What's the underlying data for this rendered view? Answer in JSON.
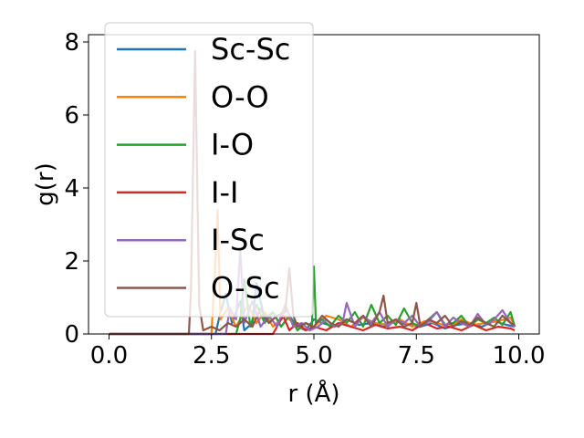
{
  "chart_data": {
    "type": "line",
    "xlabel": "r (Å)",
    "ylabel": "g(r)",
    "xlim": [
      -0.5,
      10.5
    ],
    "ylim": [
      0,
      8.2
    ],
    "xticks": [
      "0.0",
      "2.5",
      "5.0",
      "7.5",
      "10.0"
    ],
    "xtick_values": [
      0,
      2.5,
      5,
      7.5,
      10
    ],
    "yticks": [
      "0",
      "2",
      "4",
      "6",
      "8"
    ],
    "ytick_values": [
      0,
      2,
      4,
      6,
      8
    ],
    "grid": false,
    "legend_position": "top-left",
    "series": [
      {
        "name": "Sc-Sc",
        "color": "#1f77b4",
        "x": [
          0.0,
          2.6,
          2.7,
          2.85,
          3.0,
          3.2,
          3.3,
          3.5,
          3.6,
          3.8,
          4.0,
          4.2,
          4.4,
          4.6,
          4.8,
          5.0,
          5.2,
          5.5,
          5.8,
          6.1,
          6.4,
          6.7,
          7.0,
          7.3,
          7.6,
          7.9,
          8.2,
          8.5,
          8.8,
          9.1,
          9.4,
          9.7,
          9.9
        ],
        "y": [
          0,
          0,
          0.5,
          1.1,
          0.3,
          0.9,
          0.1,
          0.3,
          1.4,
          0.4,
          0.6,
          0.2,
          0.5,
          0.2,
          0.1,
          0.4,
          0.3,
          0.2,
          0.4,
          0.25,
          0.3,
          0.2,
          0.35,
          0.25,
          0.2,
          0.3,
          0.15,
          0.25,
          0.3,
          0.2,
          0.35,
          0.25,
          0.2
        ]
      },
      {
        "name": "O-O",
        "color": "#ff7f0e",
        "x": [
          0.0,
          2.5,
          2.58,
          2.65,
          2.72,
          2.9,
          3.1,
          3.4,
          3.6,
          3.8,
          4.0,
          4.3,
          4.6,
          4.9,
          5.1,
          5.3,
          5.6,
          5.9,
          6.2,
          6.5,
          6.8,
          7.1,
          7.4,
          7.7,
          8.0,
          8.3,
          8.6,
          8.9,
          9.2,
          9.5,
          9.8,
          9.9
        ],
        "y": [
          0,
          0,
          1.6,
          3.4,
          0.4,
          0.7,
          0.2,
          0.8,
          0.3,
          0.6,
          0.2,
          0.5,
          0.2,
          0.1,
          0.3,
          0.5,
          0.4,
          0.2,
          0.45,
          0.3,
          0.25,
          0.4,
          0.2,
          0.35,
          0.3,
          0.2,
          0.4,
          0.25,
          0.3,
          0.35,
          0.45,
          0.2
        ]
      },
      {
        "name": "I-O",
        "color": "#2ca02c",
        "x": [
          0.0,
          3.1,
          3.2,
          3.3,
          3.45,
          3.6,
          3.8,
          4.0,
          4.2,
          4.4,
          4.6,
          4.8,
          4.95,
          5.0,
          5.05,
          5.2,
          5.4,
          5.6,
          5.8,
          6.0,
          6.2,
          6.4,
          6.6,
          6.8,
          7.0,
          7.2,
          7.4,
          7.6,
          7.8,
          8.0,
          8.2,
          8.4,
          8.6,
          8.8,
          9.0,
          9.2,
          9.4,
          9.6,
          9.8,
          9.9
        ],
        "y": [
          0,
          0,
          0.4,
          1.5,
          0.2,
          0.8,
          0.3,
          0.6,
          0.2,
          0.5,
          0.1,
          0.3,
          0.2,
          1.85,
          0.3,
          0.4,
          0.2,
          0.5,
          0.3,
          0.6,
          0.2,
          0.8,
          0.3,
          0.5,
          0.25,
          0.7,
          0.3,
          0.2,
          0.4,
          0.6,
          0.25,
          0.3,
          0.5,
          0.2,
          0.4,
          0.3,
          0.45,
          0.25,
          0.6,
          0.2
        ]
      },
      {
        "name": "I-I",
        "color": "#d62728",
        "x": [
          0.0,
          4.0,
          4.1,
          4.25,
          4.4,
          4.6,
          4.8,
          5.0,
          5.3,
          5.6,
          5.9,
          6.2,
          6.5,
          6.8,
          7.1,
          7.4,
          7.7,
          8.0,
          8.3,
          8.6,
          8.9,
          9.2,
          9.5,
          9.8,
          9.9
        ],
        "y": [
          0,
          0,
          0.2,
          0.5,
          0.1,
          0.3,
          0.1,
          0.2,
          0.1,
          0.3,
          0.2,
          0.1,
          0.25,
          0.15,
          0.2,
          0.1,
          0.3,
          0.15,
          0.2,
          0.1,
          0.25,
          0.1,
          0.2,
          0.15,
          0.1
        ]
      },
      {
        "name": "I-Sc",
        "color": "#9467bd",
        "x": [
          0.0,
          2.85,
          2.95,
          3.1,
          3.2,
          3.3,
          3.5,
          3.7,
          3.9,
          4.1,
          4.3,
          4.5,
          4.7,
          4.9,
          5.1,
          5.3,
          5.5,
          5.7,
          5.8,
          6.0,
          6.2,
          6.4,
          6.6,
          6.8,
          7.0,
          7.2,
          7.4,
          7.6,
          7.8,
          8.0,
          8.2,
          8.4,
          8.6,
          8.8,
          9.0,
          9.2,
          9.4,
          9.6,
          9.8,
          9.9
        ],
        "y": [
          0,
          0,
          0.7,
          0.4,
          2.3,
          0.3,
          0.9,
          0.2,
          0.5,
          0.2,
          0.8,
          0.2,
          0.3,
          0.1,
          0.2,
          0.4,
          0.2,
          0.3,
          0.85,
          0.2,
          0.5,
          0.3,
          0.6,
          0.2,
          0.4,
          0.3,
          0.5,
          0.2,
          0.35,
          0.6,
          0.2,
          0.45,
          0.3,
          0.2,
          0.55,
          0.25,
          0.4,
          0.65,
          0.3,
          0.2
        ]
      },
      {
        "name": "O-Sc",
        "color": "#8c564b",
        "x": [
          0.0,
          1.95,
          2.0,
          2.1,
          2.2,
          2.3,
          2.5,
          2.7,
          2.9,
          3.1,
          3.3,
          3.5,
          3.7,
          3.9,
          4.1,
          4.3,
          4.4,
          4.5,
          4.6,
          4.8,
          5.0,
          5.2,
          5.4,
          5.6,
          5.8,
          6.0,
          6.2,
          6.4,
          6.6,
          6.7,
          6.8,
          7.0,
          7.2,
          7.4,
          7.5,
          7.6,
          7.8,
          8.0,
          8.2,
          8.4,
          8.6,
          8.8,
          9.0,
          9.2,
          9.4,
          9.6,
          9.8,
          9.9
        ],
        "y": [
          0,
          0,
          1.2,
          7.75,
          0.8,
          0.1,
          0.2,
          0.1,
          0.3,
          0.2,
          0.4,
          0.2,
          0.7,
          0.3,
          0.5,
          0.6,
          1.8,
          0.5,
          0.2,
          0.3,
          0.2,
          0.5,
          0.3,
          0.2,
          0.4,
          0.3,
          0.5,
          0.2,
          0.6,
          1.05,
          0.3,
          0.4,
          0.2,
          0.3,
          0.85,
          0.2,
          0.4,
          0.3,
          0.5,
          0.2,
          0.35,
          0.25,
          0.45,
          0.3,
          0.2,
          0.5,
          0.3,
          0.25
        ]
      }
    ]
  }
}
